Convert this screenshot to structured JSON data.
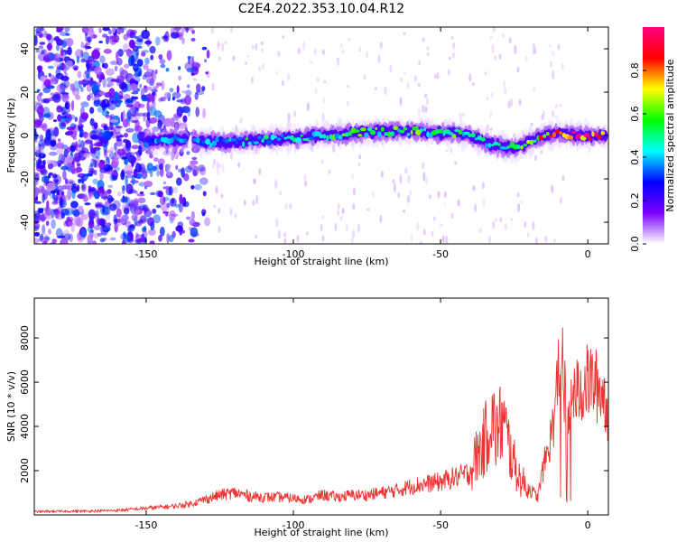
{
  "figure_title": "C2E4.2022.353.10.04.R12",
  "chart_data": [
    {
      "type": "heatmap",
      "title": "C2E4.2022.353.10.04.R12",
      "xlabel": "Height of straight line (km)",
      "ylabel": "Frequency (Hz)",
      "xlim": [
        -188,
        7
      ],
      "ylim": [
        -50,
        50
      ],
      "x_ticks": [
        -150,
        -100,
        -50,
        0
      ],
      "y_ticks": [
        40,
        20,
        0,
        -20,
        -40
      ],
      "grid": false,
      "colorbar": {
        "label": "Normalized spectral amplitude",
        "range": [
          0,
          1
        ],
        "ticks": [
          "0.0",
          "0.2",
          "0.4",
          "0.6",
          "0.8"
        ],
        "colors": [
          "#ffffff",
          "#7a00ff",
          "#0000ff",
          "#00ffff",
          "#00ff00",
          "#ffff00",
          "#ff0000",
          "#ff007f"
        ]
      },
      "ridge": {
        "x": [
          -150,
          -145,
          -140,
          -135,
          -130,
          -120,
          -110,
          -100,
          -90,
          -80,
          -70,
          -60,
          -50,
          -45,
          -40,
          -35,
          -30,
          -25,
          -20,
          -15,
          -10,
          -5,
          0,
          5
        ],
        "frequency": [
          -3,
          -2,
          -2,
          -2,
          -3,
          -3,
          -2,
          -1,
          0,
          1,
          2,
          2,
          1,
          1,
          0,
          -3,
          -5,
          -6,
          -3,
          0,
          1,
          0,
          0,
          0
        ],
        "amplitude": [
          0.35,
          0.4,
          0.4,
          0.4,
          0.4,
          0.45,
          0.45,
          0.45,
          0.5,
          0.55,
          0.55,
          0.55,
          0.55,
          0.55,
          0.5,
          0.45,
          0.45,
          0.5,
          0.6,
          0.75,
          0.85,
          0.9,
          0.95,
          0.95
        ]
      }
    },
    {
      "type": "line",
      "title": "",
      "xlabel": "Height of straight line (km)",
      "ylabel": "SNR (10 * v/v)",
      "xlim": [
        -188,
        7
      ],
      "ylim": [
        0,
        9800
      ],
      "x_ticks": [
        -150,
        -100,
        -50,
        0
      ],
      "y_ticks": [
        2000,
        4000,
        6000,
        8000
      ],
      "grid": false,
      "series": [
        {
          "color": "#ee3333",
          "x": [
            -188,
            -180,
            -170,
            -160,
            -155,
            -150,
            -145,
            -140,
            -135,
            -130,
            -125,
            -120,
            -115,
            -110,
            -105,
            -100,
            -95,
            -90,
            -85,
            -80,
            -75,
            -70,
            -65,
            -60,
            -55,
            -50,
            -45,
            -40,
            -38,
            -35,
            -33,
            -31,
            -29,
            -27,
            -25,
            -23,
            -20,
            -17,
            -15,
            -13,
            -11,
            -9,
            -7,
            -5,
            -3,
            -1,
            1,
            3,
            5,
            7
          ],
          "y": [
            150,
            160,
            170,
            200,
            250,
            300,
            350,
            400,
            500,
            700,
            900,
            1000,
            850,
            800,
            800,
            750,
            700,
            900,
            800,
            900,
            900,
            1000,
            1100,
            1300,
            1400,
            1500,
            1700,
            1900,
            2600,
            3300,
            4500,
            3600,
            4300,
            3200,
            2300,
            1600,
            1200,
            800,
            2200,
            3200,
            4800,
            8200,
            3600,
            5300,
            5600,
            5900,
            6100,
            5800,
            5600,
            4600
          ]
        }
      ]
    }
  ]
}
